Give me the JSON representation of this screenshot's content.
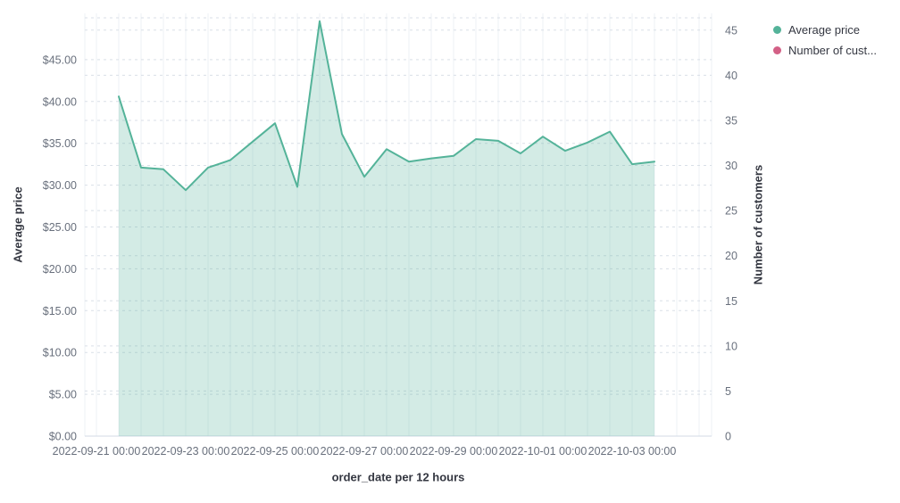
{
  "legend": {
    "items": [
      {
        "label": "Average price",
        "color": "#54B399"
      },
      {
        "label": "Number of cust...",
        "color": "#D36086"
      }
    ]
  },
  "axes": {
    "left_title": "Average price",
    "right_title": "Number of customers",
    "x_title": "order_date per 12 hours"
  },
  "colors": {
    "series_line": "#54B399",
    "series_fill": "rgba(84,179,153,0.26)",
    "second_series": "#D36086",
    "tick_label": "#69707D",
    "grid_vertical": "#edf0f5",
    "grid_dashed": "#d9dfe7",
    "baseline": "#d3dae6"
  },
  "chart_data": {
    "type": "area",
    "title": "",
    "xlabel": "order_date per 12 hours",
    "ylabel": "Average price",
    "ylabel_right": "Number of customers",
    "grid": true,
    "legend_position": "top-right",
    "x": [
      "2022-09-21 12:00",
      "2022-09-22 00:00",
      "2022-09-22 12:00",
      "2022-09-23 00:00",
      "2022-09-23 12:00",
      "2022-09-24 00:00",
      "2022-09-24 12:00",
      "2022-09-25 00:00",
      "2022-09-25 12:00",
      "2022-09-26 00:00",
      "2022-09-26 12:00",
      "2022-09-27 00:00",
      "2022-09-27 12:00",
      "2022-09-28 00:00",
      "2022-09-28 12:00",
      "2022-09-29 00:00",
      "2022-09-29 12:00",
      "2022-09-30 00:00",
      "2022-09-30 12:00",
      "2022-10-01 00:00",
      "2022-10-01 12:00",
      "2022-10-02 00:00",
      "2022-10-02 12:00",
      "2022-10-03 00:00",
      "2022-10-03 12:00"
    ],
    "series": [
      {
        "name": "Average price",
        "axis": "left",
        "color": "#54B399",
        "values": [
          40.6,
          32.1,
          31.9,
          29.4,
          32.1,
          33.0,
          35.2,
          37.4,
          29.8,
          49.6,
          36.1,
          31.0,
          34.3,
          32.8,
          33.2,
          33.5,
          35.5,
          35.3,
          33.8,
          35.8,
          34.1,
          35.1,
          36.4,
          32.5,
          32.8
        ]
      },
      {
        "name": "Number of customers",
        "axis": "right",
        "color": "#D36086",
        "values": []
      }
    ],
    "left_axis": {
      "min": 0,
      "max": 50,
      "tick_step": 5,
      "tick_labels": [
        "$0.00",
        "$5.00",
        "$10.00",
        "$15.00",
        "$20.00",
        "$25.00",
        "$30.00",
        "$35.00",
        "$40.00",
        "$45.00"
      ]
    },
    "right_axis": {
      "min": 0,
      "max": 45,
      "tick_step": 5,
      "tick_labels": [
        "0",
        "5",
        "10",
        "15",
        "20",
        "25",
        "30",
        "35",
        "40",
        "45"
      ]
    },
    "x_tick_labels": [
      "2022-09-21 00:00",
      "2022-09-23 00:00",
      "2022-09-25 00:00",
      "2022-09-27 00:00",
      "2022-09-29 00:00",
      "2022-10-01 00:00",
      "2022-10-03 00:00"
    ]
  }
}
